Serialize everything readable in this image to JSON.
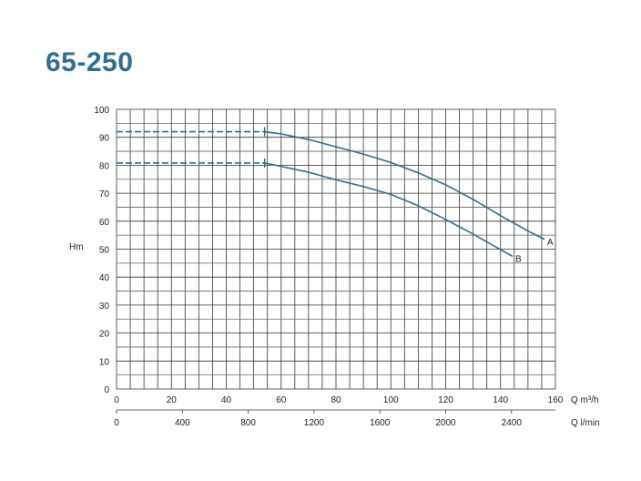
{
  "chart_data": {
    "type": "line",
    "title": "65-250",
    "ylabel": "Hm",
    "xlabel": "Q m³/h",
    "xlabel_secondary": "Q l/min",
    "xlim": [
      0,
      160
    ],
    "ylim": [
      0,
      100
    ],
    "x_ticks": [
      0,
      20,
      40,
      60,
      80,
      100,
      120,
      140,
      160
    ],
    "y_ticks": [
      0,
      10,
      20,
      30,
      40,
      50,
      60,
      70,
      80,
      90,
      100
    ],
    "secondary_x_ticks": [
      0,
      400,
      800,
      1200,
      1600,
      2000,
      2400
    ],
    "secondary_x_max": 2666.7,
    "grid": true,
    "grid_step": {
      "x": 5,
      "y": 5
    },
    "curve_color": "#2e6f8f",
    "series": [
      {
        "name": "A",
        "dashed_until": 54,
        "x": [
          0,
          54,
          60,
          70,
          80,
          90,
          100,
          110,
          120,
          130,
          140,
          150,
          156
        ],
        "y": [
          92,
          92,
          91.2,
          89.2,
          86.6,
          84,
          81,
          77.3,
          73,
          67.8,
          62,
          56.5,
          53.5
        ]
      },
      {
        "name": "B",
        "dashed_until": 54,
        "x": [
          0,
          54,
          60,
          70,
          80,
          90,
          100,
          110,
          120,
          130,
          140,
          144.4
        ],
        "y": [
          80.8,
          80.8,
          79.6,
          77.5,
          74.8,
          72.4,
          69.6,
          65.5,
          60.6,
          55.4,
          49.8,
          47.4
        ]
      }
    ]
  }
}
